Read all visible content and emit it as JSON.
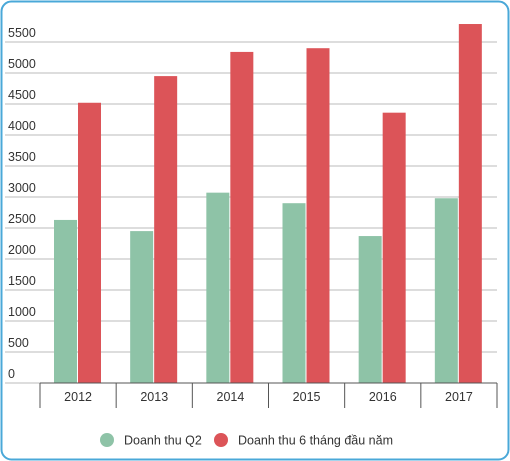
{
  "chart_data": {
    "type": "bar",
    "categories": [
      "2012",
      "2013",
      "2014",
      "2015",
      "2016",
      "2017"
    ],
    "series": [
      {
        "name": "Doanh thu Q2",
        "color": "#8ec3a7",
        "values": [
          2630,
          2450,
          3070,
          2900,
          2370,
          2980
        ]
      },
      {
        "name": "Doanh thu 6 tháng đầu năm",
        "color": "#dc5458",
        "values": [
          4520,
          4950,
          5340,
          5400,
          4360,
          5790
        ]
      }
    ],
    "ylim": [
      0,
      6000
    ],
    "yticks": [
      0,
      500,
      1000,
      1500,
      2000,
      2500,
      3000,
      3500,
      4000,
      4500,
      5000,
      5500
    ],
    "grid": true
  }
}
